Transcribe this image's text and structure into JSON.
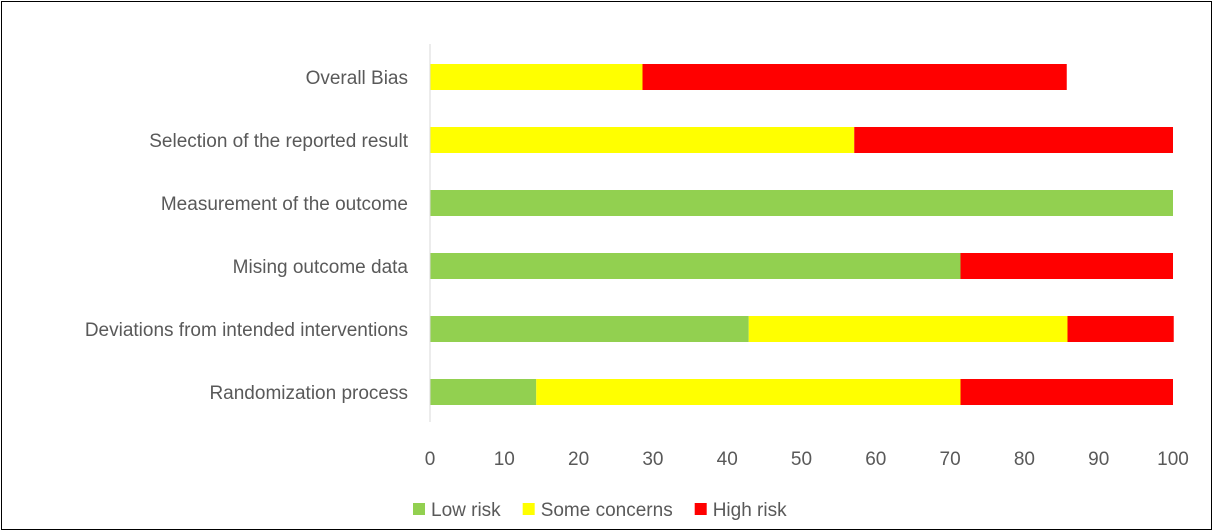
{
  "chart_data": {
    "type": "bar",
    "orientation": "horizontal",
    "stacked": true,
    "title": "",
    "xlabel": "",
    "ylabel": "",
    "xlim": [
      0,
      100
    ],
    "xticks": [
      0,
      10,
      20,
      30,
      40,
      50,
      60,
      70,
      80,
      90,
      100
    ],
    "grid": false,
    "legend_position": "bottom",
    "categories": [
      "Randomization process",
      "Deviations from intended interventions",
      "Mising outcome data",
      "Measurement of the outcome",
      "Selection of the reported result",
      "Overall Bias"
    ],
    "series": [
      {
        "name": "Low risk",
        "color": "#92d050",
        "values": [
          14.3,
          42.9,
          71.4,
          100,
          0,
          0
        ]
      },
      {
        "name": "Some concerns",
        "color": "#ffff00",
        "values": [
          57.1,
          42.9,
          0,
          0,
          57.1,
          28.6
        ]
      },
      {
        "name": "High risk",
        "color": "#ff0000",
        "values": [
          28.6,
          14.3,
          28.6,
          0,
          42.9,
          57.1
        ]
      }
    ]
  }
}
